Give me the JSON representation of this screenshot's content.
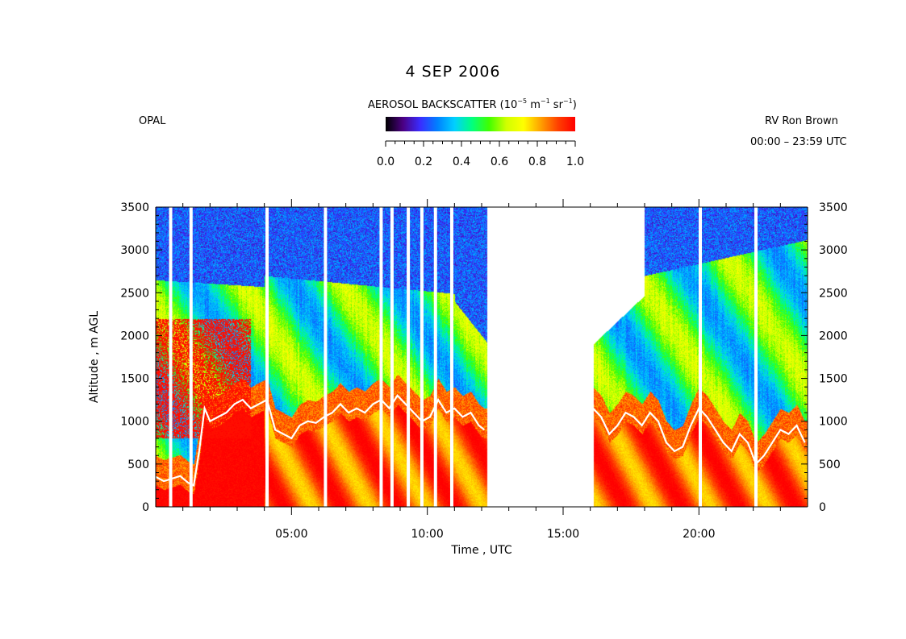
{
  "chart_data": {
    "type": "heatmap",
    "title": "4 SEP 2006",
    "left_label": "OPAL",
    "right_label_1": "RV Ron Brown",
    "right_label_2": "00:00 – 23:59 UTC",
    "colorbar": {
      "title_prefix": "AEROSOL BACKSCATTER (10",
      "exp1": "−5",
      "mid1": " m",
      "exp2": "−1",
      "mid2": " sr",
      "exp3": "−1",
      "title_suffix": ")",
      "range": [
        0.0,
        1.0
      ],
      "ticks": [
        "0.0",
        "0.2",
        "0.4",
        "0.6",
        "0.8",
        "1.0"
      ],
      "colors": [
        "#000000",
        "#4b0082",
        "#3a2cff",
        "#0080ff",
        "#00d0ff",
        "#00ff80",
        "#40ff00",
        "#d0ff00",
        "#ffff00",
        "#ffa000",
        "#ff4000",
        "#ff0000"
      ]
    },
    "xlabel": "Time , UTC",
    "ylabel": "Altitude , m AGL",
    "xlim": [
      0,
      24
    ],
    "ylim": [
      0,
      3500
    ],
    "x_ticks": [
      {
        "v": 5,
        "label": "05:00"
      },
      {
        "v": 10,
        "label": "10:00"
      },
      {
        "v": 15,
        "label": "15:00"
      },
      {
        "v": 20,
        "label": "20:00"
      }
    ],
    "y_ticks": [
      0,
      500,
      1000,
      1500,
      2000,
      2500,
      3000,
      3500
    ],
    "data_gaps_hours": [
      [
        12.2,
        16.1
      ]
    ],
    "column_gaps_hours": [
      0.55,
      1.3,
      4.1,
      6.25,
      8.3,
      8.7,
      9.3,
      9.8,
      10.3,
      10.9,
      20.05,
      22.1
    ],
    "boundary_layer_height": {
      "name": "",
      "color": "#ffffff",
      "x": [
        0.0,
        0.3,
        0.6,
        0.9,
        1.2,
        1.4,
        1.6,
        1.8,
        2.0,
        2.3,
        2.6,
        2.9,
        3.2,
        3.5,
        3.8,
        4.1,
        4.4,
        4.7,
        5.0,
        5.3,
        5.6,
        5.9,
        6.2,
        6.5,
        6.8,
        7.1,
        7.4,
        7.7,
        8.0,
        8.3,
        8.6,
        8.9,
        9.2,
        9.5,
        9.8,
        10.1,
        10.4,
        10.7,
        11.0,
        11.3,
        11.6,
        11.9,
        12.1
      ],
      "y": [
        350,
        300,
        330,
        360,
        280,
        250,
        650,
        1150,
        1000,
        1050,
        1100,
        1200,
        1250,
        1150,
        1200,
        1250,
        900,
        850,
        800,
        950,
        1000,
        980,
        1050,
        1100,
        1200,
        1100,
        1150,
        1100,
        1200,
        1250,
        1150,
        1300,
        1200,
        1100,
        1000,
        1050,
        1250,
        1100,
        1150,
        1050,
        1100,
        950,
        900
      ]
    },
    "boundary_layer_height_2": {
      "name": "",
      "color": "#ffffff",
      "x": [
        16.1,
        16.4,
        16.7,
        17.0,
        17.3,
        17.6,
        17.9,
        18.2,
        18.5,
        18.8,
        19.1,
        19.4,
        19.7,
        20.0,
        20.3,
        20.6,
        20.9,
        21.2,
        21.5,
        21.8,
        22.1,
        22.4,
        22.7,
        23.0,
        23.3,
        23.6,
        23.9
      ],
      "y": [
        1150,
        1050,
        850,
        950,
        1100,
        1050,
        950,
        1100,
        1000,
        750,
        650,
        700,
        950,
        1150,
        1050,
        900,
        750,
        650,
        850,
        750,
        500,
        600,
        750,
        900,
        850,
        950,
        750
      ]
    }
  }
}
